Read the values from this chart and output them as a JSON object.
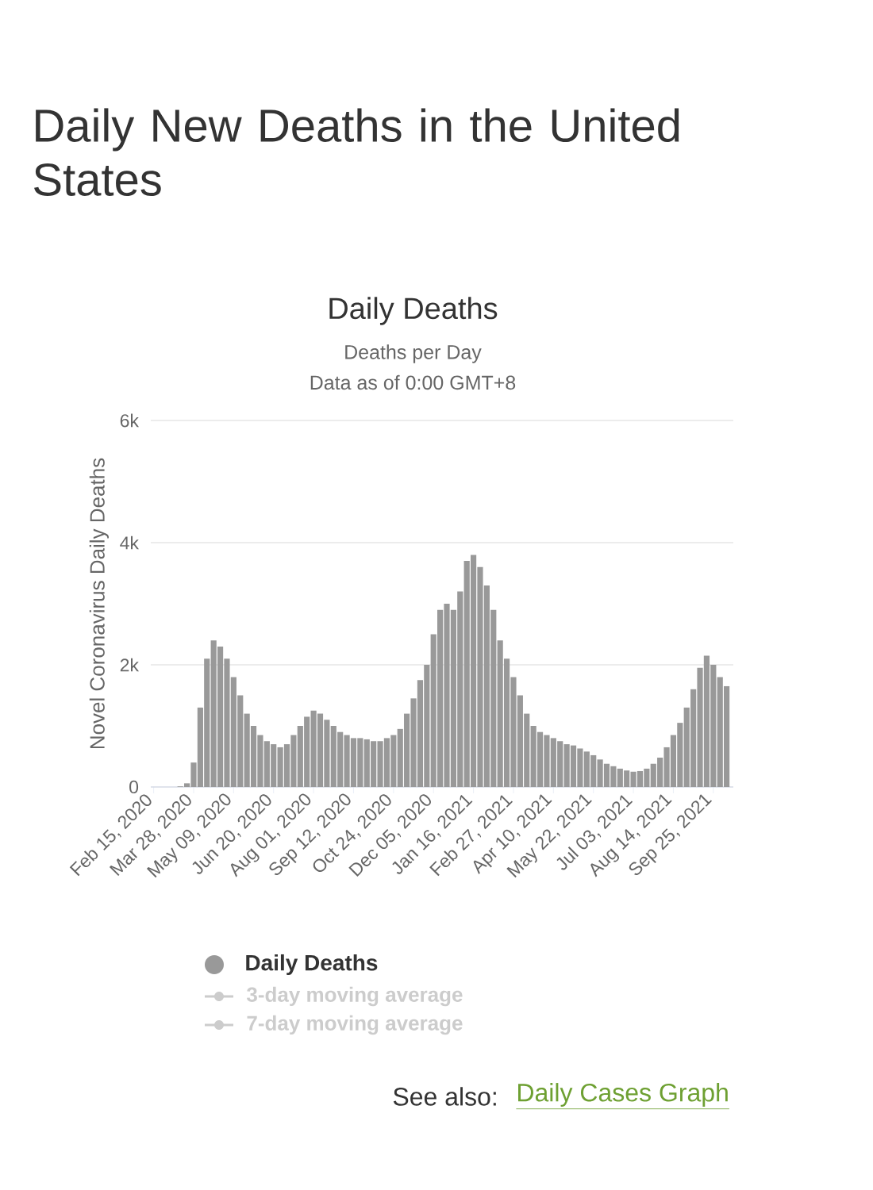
{
  "chart_data": {
    "type": "bar",
    "title": "Daily New Deaths in the United States",
    "subtitle": "Daily Deaths",
    "ylabel": "Novel Coronavirus Daily Deaths",
    "annotations": [
      "Deaths per Day",
      "Data as of 0:00 GMT+8",
      "3-day moving average",
      "7-day moving average",
      "See also:",
      "Daily Cases Graph"
    ],
    "x": [
      "2020-02-15",
      "2020-02-22",
      "2020-02-29",
      "2020-03-07",
      "2020-03-14",
      "2020-03-21",
      "2020-03-28",
      "2020-04-04",
      "2020-04-11",
      "2020-04-18",
      "2020-04-25",
      "2020-05-02",
      "2020-05-09",
      "2020-05-16",
      "2020-05-23",
      "2020-05-30",
      "2020-06-06",
      "2020-06-13",
      "2020-06-20",
      "2020-06-27",
      "2020-07-04",
      "2020-07-11",
      "2020-07-18",
      "2020-07-25",
      "2020-08-01",
      "2020-08-08",
      "2020-08-15",
      "2020-08-22",
      "2020-08-29",
      "2020-09-05",
      "2020-09-12",
      "2020-09-19",
      "2020-09-26",
      "2020-10-03",
      "2020-10-10",
      "2020-10-17",
      "2020-10-24",
      "2020-10-31",
      "2020-11-07",
      "2020-11-14",
      "2020-11-21",
      "2020-11-28",
      "2020-12-05",
      "2020-12-12",
      "2020-12-19",
      "2020-12-26",
      "2021-01-02",
      "2021-01-09",
      "2021-01-16",
      "2021-01-23",
      "2021-01-30",
      "2021-02-06",
      "2021-02-13",
      "2021-02-20",
      "2021-02-27",
      "2021-03-06",
      "2021-03-13",
      "2021-03-20",
      "2021-03-27",
      "2021-04-03",
      "2021-04-10",
      "2021-04-17",
      "2021-04-24",
      "2021-05-01",
      "2021-05-08",
      "2021-05-15",
      "2021-05-22",
      "2021-05-29",
      "2021-06-05",
      "2021-06-12",
      "2021-06-19",
      "2021-06-26",
      "2021-07-03",
      "2021-07-10",
      "2021-07-17",
      "2021-07-24",
      "2021-07-31",
      "2021-08-07",
      "2021-08-14",
      "2021-08-21",
      "2021-08-28",
      "2021-09-04",
      "2021-09-11",
      "2021-09-18",
      "2021-09-25",
      "2021-10-02",
      "2021-10-09"
    ],
    "series": [
      {
        "name": "Daily Deaths",
        "color": "#999999",
        "values": [
          0,
          0,
          0,
          0,
          10,
          60,
          400,
          1300,
          2100,
          2400,
          2300,
          2100,
          1800,
          1500,
          1200,
          1000,
          850,
          750,
          700,
          650,
          700,
          850,
          1000,
          1150,
          1250,
          1200,
          1100,
          1000,
          900,
          850,
          800,
          800,
          780,
          750,
          750,
          800,
          850,
          950,
          1200,
          1450,
          1750,
          2000,
          2500,
          2900,
          3000,
          2900,
          3200,
          3700,
          3800,
          3600,
          3300,
          2900,
          2400,
          2100,
          1800,
          1500,
          1200,
          1000,
          900,
          850,
          800,
          750,
          700,
          680,
          630,
          580,
          520,
          450,
          380,
          340,
          300,
          270,
          250,
          260,
          300,
          380,
          480,
          650,
          850,
          1050,
          1300,
          1600,
          1950,
          2150,
          2000,
          1800,
          1650
        ]
      }
    ],
    "xlim": [
      "2020-02-12",
      "2021-10-16"
    ],
    "xticks": [
      {
        "value": "2020-02-15",
        "label": "Feb 15, 2020"
      },
      {
        "value": "2020-03-28",
        "label": "Mar 28, 2020"
      },
      {
        "value": "2020-05-09",
        "label": "May 09, 2020"
      },
      {
        "value": "2020-06-20",
        "label": "Jun 20, 2020"
      },
      {
        "value": "2020-08-01",
        "label": "Aug 01, 2020"
      },
      {
        "value": "2020-09-12",
        "label": "Sep 12, 2020"
      },
      {
        "value": "2020-10-24",
        "label": "Oct 24, 2020"
      },
      {
        "value": "2020-12-05",
        "label": "Dec 05, 2020"
      },
      {
        "value": "2021-01-16",
        "label": "Jan 16, 2021"
      },
      {
        "value": "2021-02-27",
        "label": "Feb 27, 2021"
      },
      {
        "value": "2021-04-10",
        "label": "Apr 10, 2021"
      },
      {
        "value": "2021-05-22",
        "label": "May 22, 2021"
      },
      {
        "value": "2021-07-03",
        "label": "Jul 03, 2021"
      },
      {
        "value": "2021-08-14",
        "label": "Aug 14, 2021"
      },
      {
        "value": "2021-09-25",
        "label": "Sep 25, 2021"
      }
    ],
    "ylim": [
      0,
      6000
    ],
    "yticks": [
      0,
      {
        "value": 2000,
        "label": "2k"
      },
      {
        "value": 4000,
        "label": "4k"
      },
      {
        "value": 6000,
        "label": "6k"
      }
    ],
    "grid": "y",
    "legend": "bottom"
  }
}
